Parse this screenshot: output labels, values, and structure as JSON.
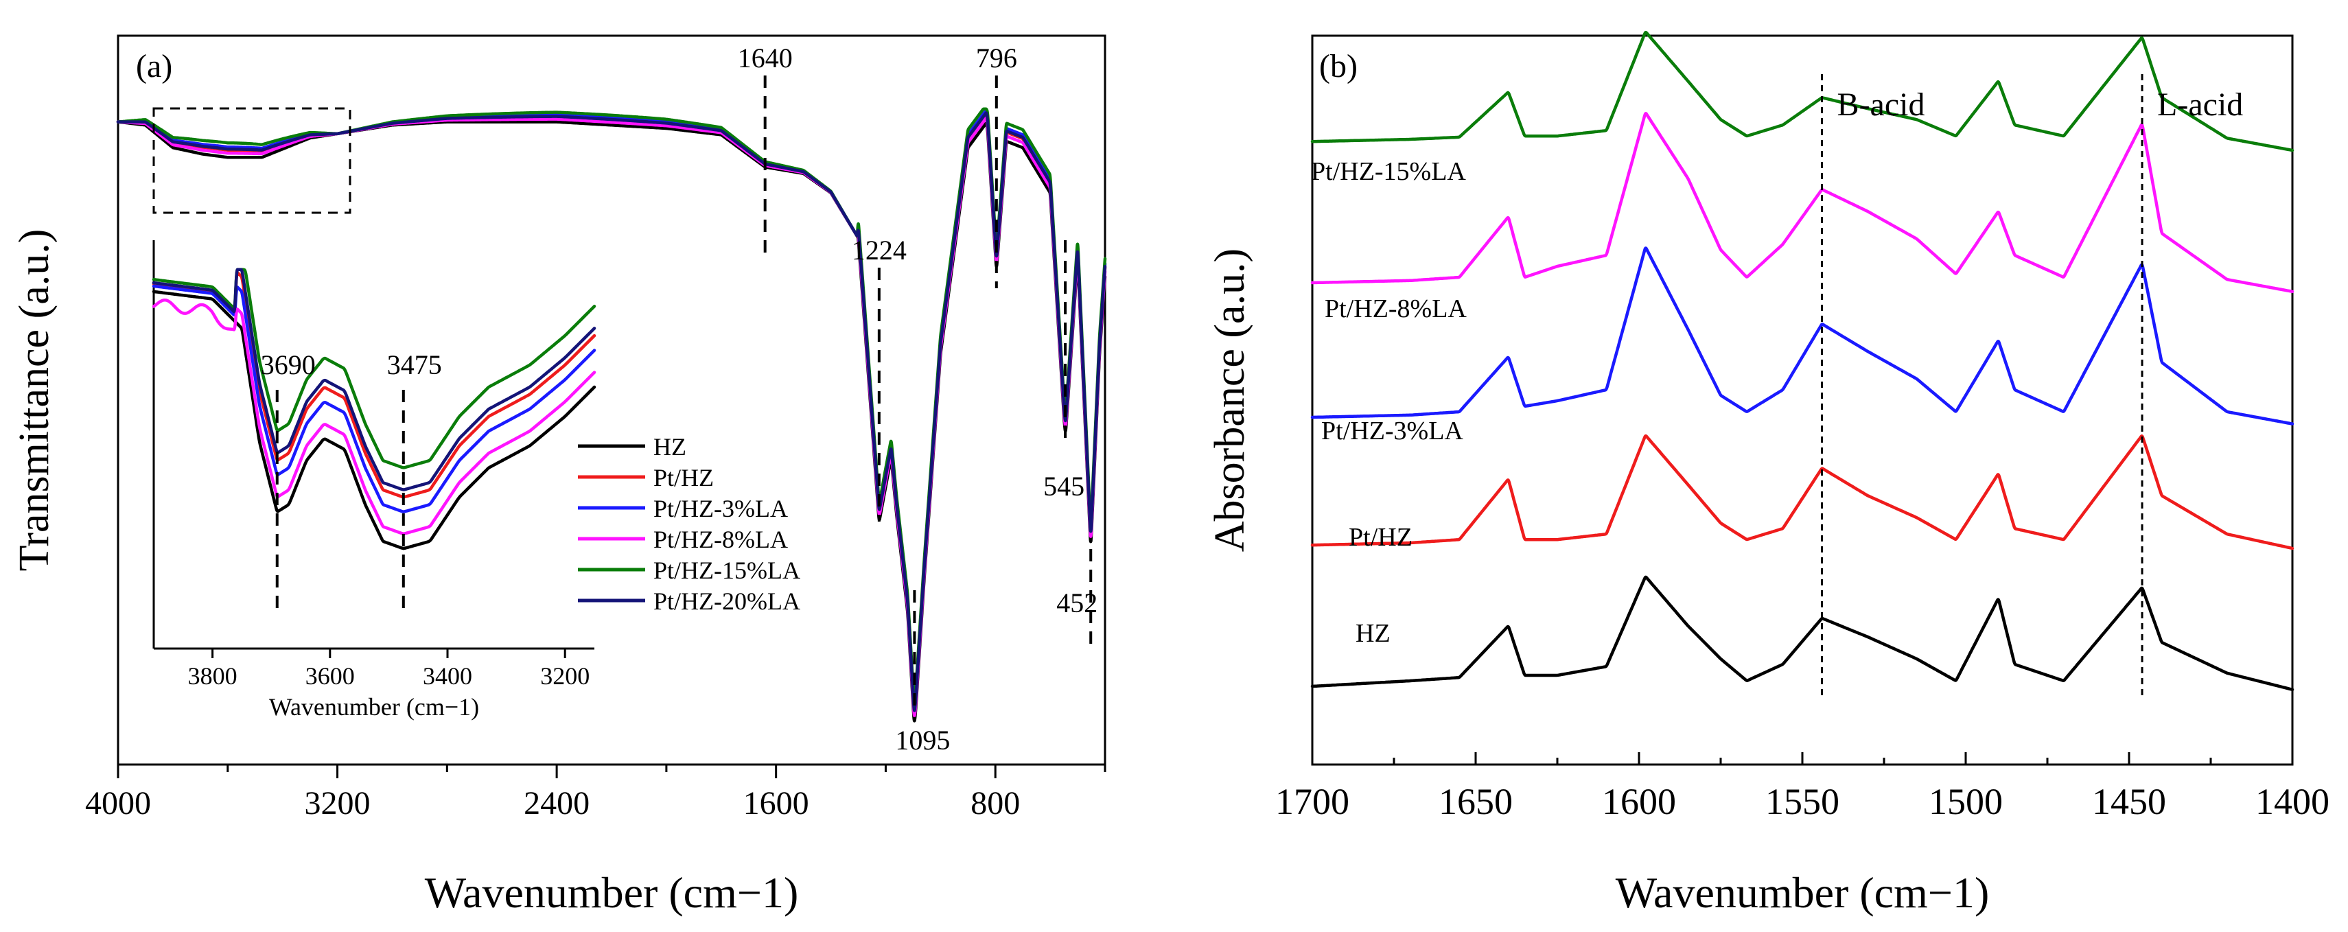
{
  "colors": {
    "HZ": "#000000",
    "Pt/HZ": "#ef1c1c",
    "Pt/HZ-3%LA": "#1a1aff",
    "Pt/HZ-8%LA": "#ff14ff",
    "Pt/HZ-15%LA": "#0a7d0a",
    "Pt/HZ-20%LA": "#141478"
  },
  "chart_data": [
    {
      "type": "line",
      "panel_label": "(a)",
      "title": "",
      "xlabel": "Wavenumber (cm−1)",
      "ylabel": "Transmittance (a.u.)",
      "xlim": [
        4000,
        400
      ],
      "x_reversed": true,
      "x_ticks": [
        4000,
        3200,
        2400,
        1600,
        800
      ],
      "x_tick_labels": [
        "4000",
        "3200",
        "2400",
        "1600",
        "800"
      ],
      "yaxis_ticks": false,
      "legend_labels": [
        "HZ",
        "Pt/HZ",
        "Pt/HZ-3%LA",
        "Pt/HZ-8%LA",
        "Pt/HZ-15%LA",
        "Pt/HZ-20%LA"
      ],
      "legend_position": "inside-center",
      "annotations": [
        "1640",
        "796",
        "1224",
        "1095",
        "545",
        "452"
      ],
      "annotation_values": [
        1640,
        796,
        1224,
        1095,
        545,
        452
      ],
      "series_names": [
        "HZ",
        "Pt/HZ",
        "Pt/HZ-3%LA",
        "Pt/HZ-8%LA",
        "Pt/HZ-15%LA",
        "Pt/HZ-20%LA"
      ],
      "series_offsets": [
        0.0,
        0.35,
        0.5,
        0.2,
        0.7,
        0.4
      ],
      "anchor_points": [
        [
          4000,
          96.0
        ],
        [
          3900,
          95.5
        ],
        [
          3800,
          92.0
        ],
        [
          3690,
          91.0
        ],
        [
          3600,
          90.5
        ],
        [
          3475,
          90.5
        ],
        [
          3300,
          93.5
        ],
        [
          3000,
          95.5
        ],
        [
          2800,
          96.0
        ],
        [
          2400,
          96.0
        ],
        [
          2000,
          95.0
        ],
        [
          1800,
          94.0
        ],
        [
          1640,
          89.0
        ],
        [
          1500,
          88.0
        ],
        [
          1400,
          85.0
        ],
        [
          1300,
          78.0
        ],
        [
          1224,
          34.0
        ],
        [
          1180,
          44.0
        ],
        [
          1160,
          35.0
        ],
        [
          1120,
          20.0
        ],
        [
          1095,
          2.0
        ],
        [
          1060,
          25.0
        ],
        [
          1000,
          60.0
        ],
        [
          900,
          92.0
        ],
        [
          830,
          96.0
        ],
        [
          796,
          73.0
        ],
        [
          760,
          93.0
        ],
        [
          700,
          92.0
        ],
        [
          600,
          85.0
        ],
        [
          545,
          47.0
        ],
        [
          500,
          75.0
        ],
        [
          452,
          30.0
        ],
        [
          420,
          60.0
        ],
        [
          400,
          72.0
        ]
      ],
      "inset": {
        "xlabel": "Wavenumber (cm−1)",
        "xlim": [
          3900,
          3150
        ],
        "x_ticks": [
          3800,
          3600,
          3400,
          3200
        ],
        "x_tick_labels": [
          "3800",
          "3600",
          "3400",
          "3200"
        ],
        "annotations": [
          "3690",
          "3475"
        ],
        "annotation_values": [
          3690,
          3475
        ],
        "series_offsets": [
          0.0,
          14.0,
          10.0,
          4.0,
          22.0,
          16.0
        ],
        "anchor_points": [
          [
            3900,
            86.0
          ],
          [
            3800,
            84.0
          ],
          [
            3750,
            76.0
          ],
          [
            3720,
            45.0
          ],
          [
            3690,
            26.0
          ],
          [
            3670,
            28.0
          ],
          [
            3640,
            40.0
          ],
          [
            3610,
            46.0
          ],
          [
            3575,
            43.0
          ],
          [
            3540,
            28.0
          ],
          [
            3510,
            18.0
          ],
          [
            3475,
            16.0
          ],
          [
            3430,
            18.0
          ],
          [
            3380,
            30.0
          ],
          [
            3330,
            38.0
          ],
          [
            3260,
            44.0
          ],
          [
            3200,
            52.0
          ],
          [
            3150,
            60.0
          ]
        ]
      }
    },
    {
      "type": "line",
      "panel_label": "(b)",
      "title": "",
      "xlabel": "Wavenumber (cm−1)",
      "ylabel": "Absorbance (a.u.)",
      "xlim": [
        1700,
        1400
      ],
      "x_reversed": true,
      "x_ticks": [
        1700,
        1650,
        1600,
        1550,
        1500,
        1450,
        1400
      ],
      "x_tick_labels": [
        "1700",
        "1650",
        "1600",
        "1550",
        "1500",
        "1450",
        "1400"
      ],
      "yaxis_ticks": false,
      "annotations": [
        "B-acid",
        "L-acid"
      ],
      "annotation_values": [
        1544,
        1446
      ],
      "series": [
        {
          "name": "HZ",
          "label": "HZ",
          "baseline": 0.0
        },
        {
          "name": "Pt/HZ",
          "label": "Pt/HZ",
          "baseline": 1.05
        },
        {
          "name": "Pt/HZ-3%LA",
          "label": "Pt/HZ-3%LA",
          "baseline": 2.0
        },
        {
          "name": "Pt/HZ-8%LA",
          "label": "Pt/HZ-8%LA",
          "baseline": 3.0
        },
        {
          "name": "Pt/HZ-15%LA",
          "label": "Pt/HZ-15%LA",
          "baseline": 4.05
        }
      ],
      "peak_heights": [
        [
          0.0,
          0.05,
          0.08,
          0.55,
          0.1,
          0.1,
          0.18,
          1.0,
          0.55,
          0.25,
          0.05,
          0.2,
          0.62,
          0.45,
          0.25,
          0.05,
          0.8,
          0.2,
          0.05,
          0.9,
          0.4,
          0.12,
          0.05
        ],
        [
          0.0,
          0.02,
          0.05,
          0.6,
          0.05,
          0.05,
          0.1,
          1.0,
          0.55,
          0.2,
          0.05,
          0.15,
          0.7,
          0.45,
          0.25,
          0.05,
          0.65,
          0.15,
          0.05,
          1.0,
          0.45,
          0.1,
          0.05
        ],
        [
          0.0,
          0.02,
          0.05,
          0.55,
          0.1,
          0.15,
          0.25,
          1.55,
          0.8,
          0.2,
          0.05,
          0.25,
          0.85,
          0.6,
          0.35,
          0.05,
          0.7,
          0.25,
          0.05,
          1.4,
          0.5,
          0.05,
          0.02
        ],
        [
          0.0,
          0.02,
          0.05,
          0.6,
          0.05,
          0.15,
          0.25,
          1.55,
          0.95,
          0.3,
          0.05,
          0.35,
          0.85,
          0.65,
          0.4,
          0.08,
          0.65,
          0.25,
          0.05,
          1.45,
          0.45,
          0.03,
          0.0
        ],
        [
          0.0,
          0.02,
          0.04,
          0.45,
          0.05,
          0.05,
          0.1,
          1.0,
          0.55,
          0.2,
          0.05,
          0.15,
          0.4,
          0.3,
          0.2,
          0.05,
          0.55,
          0.15,
          0.05,
          0.95,
          0.4,
          0.03,
          0.0
        ]
      ],
      "peak_x": [
        1700,
        1670,
        1655,
        1640,
        1635,
        1625,
        1610,
        1598,
        1585,
        1575,
        1567,
        1556,
        1544,
        1530,
        1515,
        1503,
        1490,
        1485,
        1470,
        1446,
        1440,
        1420,
        1400
      ]
    }
  ]
}
